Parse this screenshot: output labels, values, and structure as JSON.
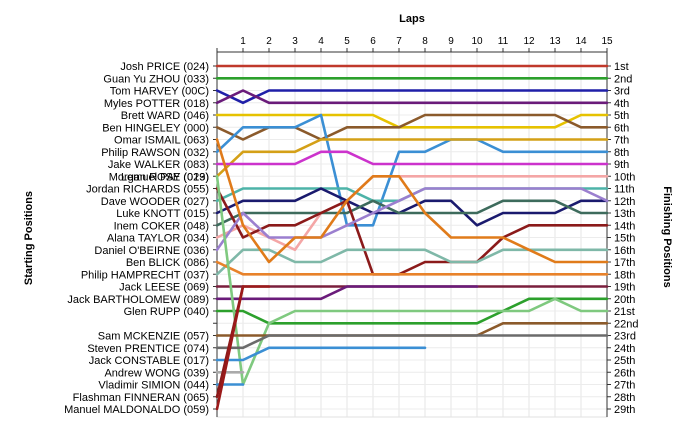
{
  "chart_data": {
    "type": "line",
    "title": "",
    "xlabel": "Laps",
    "ylabel_left": "Starting Positions",
    "ylabel_right": "Finishing Positions",
    "laps": [
      1,
      2,
      3,
      4,
      5,
      6,
      7,
      8,
      9,
      10,
      11,
      12,
      13,
      14,
      15
    ],
    "finishing_labels": [
      "1st",
      "2nd",
      "3rd",
      "4th",
      "5th",
      "6th",
      "7th",
      "8th",
      "9th",
      "10th",
      "11th",
      "12th",
      "13th",
      "14th",
      "15th",
      "16th",
      "17th",
      "18th",
      "19th",
      "20th",
      "21st",
      "22nd",
      "23rd",
      "24th",
      "25th",
      "26th",
      "27th",
      "28th",
      "29th"
    ],
    "grid": true,
    "series": [
      {
        "name": "Josh PRICE (024)",
        "color": "#c0392b",
        "positions": [
          1,
          1,
          1,
          1,
          1,
          1,
          1,
          1,
          1,
          1,
          1,
          1,
          1,
          1,
          1,
          1
        ]
      },
      {
        "name": "Guan Yu ZHOU (033)",
        "color": "#2ca02c",
        "positions": [
          2,
          2,
          2,
          2,
          2,
          2,
          2,
          2,
          2,
          2,
          2,
          2,
          2,
          2,
          2,
          2
        ]
      },
      {
        "name": "Tom HARVEY (00C)",
        "color": "#1f1fa8",
        "positions": [
          3,
          4,
          3,
          3,
          3,
          3,
          3,
          3,
          3,
          3,
          3,
          3,
          3,
          3,
          3,
          3
        ]
      },
      {
        "name": "Myles POTTER (018)",
        "color": "#6a1b7a",
        "positions": [
          4,
          3,
          4,
          4,
          4,
          4,
          4,
          4,
          4,
          4,
          4,
          4,
          4,
          4,
          4,
          4
        ]
      },
      {
        "name": "Brett WARD (046)",
        "color": "#e6c200",
        "positions": [
          5,
          5,
          5,
          5,
          5,
          5,
          5,
          6,
          6,
          6,
          6,
          6,
          6,
          6,
          5,
          5
        ]
      },
      {
        "name": "Ben HINGELEY (000)",
        "color": "#8b5a2b",
        "positions": [
          6,
          7,
          6,
          6,
          7,
          6,
          6,
          6,
          5,
          5,
          5,
          5,
          5,
          5,
          6,
          6
        ]
      },
      {
        "name": "Philip RAWSON (032)",
        "color": "#3b8fd4",
        "positions": [
          8,
          6,
          6,
          6,
          5,
          14,
          14,
          8,
          8,
          7,
          7,
          8,
          8,
          8,
          8,
          8
        ]
      },
      {
        "name": "Morgan ROSE (019)",
        "color": "#d4a017",
        "positions": [
          10,
          8,
          8,
          8,
          7,
          7,
          7,
          7,
          7,
          7,
          7,
          7,
          7,
          7,
          7,
          7
        ]
      },
      {
        "name": "Jake WALKER (083)",
        "color": "#cc33cc",
        "positions": [
          9,
          9,
          9,
          9,
          8,
          8,
          9,
          9,
          9,
          9,
          9,
          9,
          9,
          9,
          9,
          9
        ]
      },
      {
        "name": "Alana TAYLOR (034)",
        "color": "#f4a6a6",
        "positions": [
          15,
          14,
          15,
          16,
          13,
          12,
          10,
          10,
          10,
          10,
          10,
          10,
          10,
          10,
          10,
          10
        ]
      },
      {
        "name": "Dave WOODER (027)",
        "color": "#4db3a8",
        "positions": [
          12,
          11,
          11,
          11,
          11,
          11,
          12,
          12,
          11,
          11,
          11,
          11,
          11,
          11,
          11,
          11
        ]
      },
      {
        "name": "Luke KNOTT (015)",
        "color": "#1a1a6e",
        "positions": [
          13,
          12,
          12,
          12,
          11,
          12,
          13,
          13,
          12,
          12,
          14,
          13,
          13,
          13,
          12,
          12
        ]
      },
      {
        "name": "Inem COKER (048)",
        "color": "#3d6b5c",
        "positions": [
          14,
          13,
          13,
          13,
          13,
          13,
          12,
          13,
          13,
          13,
          13,
          12,
          12,
          12,
          13,
          13
        ]
      },
      {
        "name": "Jordan RICHARDS (055)",
        "color": "#8b1a1a",
        "positions": [
          11,
          15,
          14,
          14,
          13,
          12,
          18,
          18,
          17,
          17,
          17,
          15,
          14,
          14,
          14,
          14
        ]
      },
      {
        "name": "Daniel O'BEIRNE (036)",
        "color": "#9b7fcf",
        "positions": [
          16,
          13,
          15,
          15,
          15,
          14,
          13,
          12,
          11,
          11,
          11,
          11,
          11,
          11,
          11,
          12
        ]
      },
      {
        "name": "Philip HAMPRECHT (037)",
        "color": "#7fb8a8",
        "positions": [
          18,
          16,
          16,
          17,
          17,
          16,
          16,
          16,
          16,
          17,
          17,
          16,
          16,
          16,
          16,
          16
        ]
      },
      {
        "name": "Omar ISMAIL (063)",
        "color": "#e07b1a",
        "positions": [
          7,
          14,
          17,
          15,
          15,
          12,
          10,
          10,
          13,
          15,
          15,
          15,
          16,
          17,
          17,
          17
        ]
      },
      {
        "name": "Ben BLICK (086)",
        "color": "#e8822a",
        "positions": [
          17,
          18,
          18,
          18,
          18,
          18,
          18,
          18,
          18,
          18,
          18,
          18,
          18,
          18,
          18,
          18
        ]
      },
      {
        "name": "Jack LEESE (069)",
        "color": "#7a1f3d",
        "positions": [
          19,
          19,
          19,
          19,
          19,
          19,
          19,
          19,
          19,
          19,
          19,
          19,
          19,
          19,
          19,
          19
        ]
      },
      {
        "name": "Jack BARTHOLOMEW (089)",
        "color": "#6a1b7a",
        "positions": [
          20,
          20,
          20,
          20,
          20,
          19,
          19,
          19,
          19,
          19,
          19
        ]
      },
      {
        "name": "Glen RUPP (040)",
        "color": "#2ca02c",
        "positions": [
          21,
          21,
          22,
          22,
          22,
          22,
          22,
          22,
          22,
          22,
          22,
          21,
          20,
          20,
          20,
          20
        ]
      },
      {
        "name": "Lemuel PAY (023)",
        "color": "#7fc97f",
        "positions": [
          10,
          27,
          22,
          21,
          21,
          21,
          21,
          21,
          21,
          21,
          21,
          21,
          21,
          20,
          21,
          21
        ]
      },
      {
        "name": "Sam MCKENZIE (057)",
        "color": "#8b5a2b",
        "positions": [
          23,
          23,
          23,
          23,
          23,
          23,
          23,
          23,
          23,
          23,
          23,
          22,
          22,
          22,
          22,
          22
        ]
      },
      {
        "name": "Steven PRENTICE (074)",
        "color": "#6b6b6b",
        "positions": [
          24,
          24,
          23,
          23,
          23,
          23,
          23,
          23,
          23,
          23,
          23,
          23,
          23,
          23,
          23,
          23
        ]
      },
      {
        "name": "Jack CONSTABLE (017)",
        "color": "#3b8fd4",
        "positions": [
          25,
          25,
          24,
          24,
          24,
          24,
          24,
          24,
          24
        ]
      },
      {
        "name": "Andrew WONG (039)",
        "color": "#aaaaaa",
        "positions": [
          26,
          26
        ]
      },
      {
        "name": "Vladimir SIMION (044)",
        "color": "#3b8fd4",
        "positions": [
          27,
          27
        ]
      },
      {
        "name": "Flashman FINNERAN (065)",
        "color": "#8b1a1a",
        "positions": [
          28,
          19
        ]
      },
      {
        "name": "Manuel MALDONALDO (059)",
        "color": "#9b1a1a",
        "positions": [
          29,
          19,
          19
        ]
      }
    ]
  }
}
